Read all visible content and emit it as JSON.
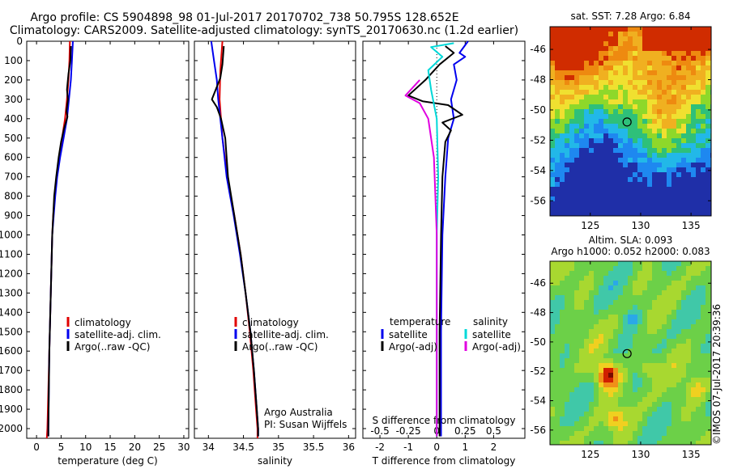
{
  "header": {
    "line1": "Argo profile: CS 5904898_98 01-Jul-2017 20170702_738 50.795S 128.652E",
    "line2": "Climatology: CARS2009. Satellite-adjusted climatology: synTS_20170630.nc (1.2d earlier)"
  },
  "credit": "©IMOS 07-Jul-2017 20:39:36",
  "chart_data": [
    {
      "type": "line",
      "panel": "temperature",
      "xlabel": "temperature (deg C)",
      "xlim": [
        -2,
        31
      ],
      "xticks": [
        "0",
        "5",
        "10",
        "15",
        "20",
        "25",
        "30"
      ],
      "xtick_values": [
        0,
        5,
        10,
        15,
        20,
        25,
        30
      ],
      "ylim": [
        0,
        2050
      ],
      "yticks": [
        "0",
        "100",
        "200",
        "300",
        "400",
        "500",
        "600",
        "700",
        "800",
        "900",
        "1000",
        "1100",
        "1200",
        "1300",
        "1400",
        "1500",
        "1600",
        "1700",
        "1800",
        "1900",
        "2000"
      ],
      "ytick_values": [
        0,
        100,
        200,
        300,
        400,
        500,
        600,
        700,
        800,
        900,
        1000,
        1100,
        1200,
        1300,
        1400,
        1500,
        1600,
        1700,
        1800,
        1900,
        2000
      ],
      "legend": [
        "climatology",
        "satellite-adj. clim.",
        "Argo(..raw -QC)"
      ],
      "legend_placement": "middle-right",
      "series": [
        {
          "name": "climatology",
          "color": "#e00000",
          "points": [
            [
              6.8,
              0
            ],
            [
              6.7,
              100
            ],
            [
              6.5,
              200
            ],
            [
              6.2,
              300
            ],
            [
              5.8,
              400
            ],
            [
              5.2,
              500
            ],
            [
              4.6,
              600
            ],
            [
              4.1,
              700
            ],
            [
              3.7,
              800
            ],
            [
              3.4,
              900
            ],
            [
              3.2,
              1000
            ],
            [
              3.0,
              1200
            ],
            [
              2.8,
              1400
            ],
            [
              2.6,
              1600
            ],
            [
              2.4,
              1800
            ],
            [
              2.2,
              2000
            ],
            [
              2.1,
              2050
            ]
          ]
        },
        {
          "name": "satellite-adj. clim.",
          "color": "#0000ee",
          "points": [
            [
              7.4,
              0
            ],
            [
              7.2,
              100
            ],
            [
              7.0,
              200
            ],
            [
              6.6,
              300
            ],
            [
              6.2,
              400
            ],
            [
              5.5,
              500
            ],
            [
              4.8,
              600
            ],
            [
              4.2,
              700
            ],
            [
              3.8,
              800
            ],
            [
              3.5,
              900
            ],
            [
              3.2,
              1000
            ],
            [
              3.0,
              1200
            ],
            [
              2.8,
              1400
            ],
            [
              2.6,
              1600
            ],
            [
              2.5,
              1800
            ],
            [
              2.4,
              2000
            ],
            [
              2.4,
              2040
            ]
          ]
        },
        {
          "name": "Argo(..raw -QC)",
          "color": "#000000",
          "points": [
            [
              7.0,
              25
            ],
            [
              6.9,
              100
            ],
            [
              6.5,
              170
            ],
            [
              6.2,
              250
            ],
            [
              6.4,
              300
            ],
            [
              6.1,
              360
            ],
            [
              6.3,
              390
            ],
            [
              5.6,
              450
            ],
            [
              5.0,
              520
            ],
            [
              4.5,
              600
            ],
            [
              4.0,
              700
            ],
            [
              3.6,
              800
            ],
            [
              3.4,
              900
            ],
            [
              3.2,
              1000
            ],
            [
              3.0,
              1200
            ],
            [
              2.8,
              1400
            ],
            [
              2.6,
              1600
            ],
            [
              2.5,
              1800
            ],
            [
              2.4,
              2000
            ],
            [
              2.4,
              2040
            ]
          ]
        }
      ]
    },
    {
      "type": "line",
      "panel": "salinity",
      "xlabel": "salinity",
      "xlim": [
        33.8,
        36.1
      ],
      "xticks": [
        "34",
        "34.5",
        "35",
        "35.5",
        "36"
      ],
      "xtick_values": [
        34,
        34.5,
        35,
        35.5,
        36
      ],
      "ylim": [
        0,
        2050
      ],
      "legend": [
        "climatology",
        "satellite-adj. clim.",
        "Argo(..raw -QC)"
      ],
      "legend_placement": "middle-right",
      "annotation": [
        "Argo Australia",
        "PI: Susan Wijffels"
      ],
      "series": [
        {
          "name": "climatology",
          "color": "#e00000",
          "points": [
            [
              34.2,
              0
            ],
            [
              34.17,
              150
            ],
            [
              34.16,
              300
            ],
            [
              34.2,
              500
            ],
            [
              34.27,
              700
            ],
            [
              34.37,
              900
            ],
            [
              34.46,
              1100
            ],
            [
              34.53,
              1300
            ],
            [
              34.59,
              1500
            ],
            [
              34.64,
              1700
            ],
            [
              34.68,
              1900
            ],
            [
              34.7,
              2000
            ],
            [
              34.7,
              2050
            ]
          ]
        },
        {
          "name": "satellite-adj. clim.",
          "color": "#0000ee",
          "points": [
            [
              34.04,
              0
            ],
            [
              34.08,
              100
            ],
            [
              34.12,
              200
            ],
            [
              34.14,
              300
            ],
            [
              34.17,
              400
            ],
            [
              34.2,
              500
            ],
            [
              34.26,
              700
            ],
            [
              34.36,
              900
            ],
            [
              34.45,
              1100
            ],
            [
              34.53,
              1300
            ],
            [
              34.6,
              1500
            ],
            [
              34.65,
              1700
            ],
            [
              34.69,
              1900
            ],
            [
              34.71,
              2000
            ],
            [
              34.71,
              2040
            ]
          ]
        },
        {
          "name": "Argo(..raw -QC)",
          "color": "#000000",
          "points": [
            [
              34.22,
              25
            ],
            [
              34.2,
              120
            ],
            [
              34.17,
              190
            ],
            [
              34.05,
              300
            ],
            [
              34.12,
              340
            ],
            [
              34.18,
              400
            ],
            [
              34.24,
              500
            ],
            [
              34.28,
              700
            ],
            [
              34.37,
              900
            ],
            [
              34.46,
              1100
            ],
            [
              34.53,
              1300
            ],
            [
              34.6,
              1500
            ],
            [
              34.65,
              1700
            ],
            [
              34.69,
              1900
            ],
            [
              34.71,
              2000
            ],
            [
              34.71,
              2040
            ]
          ]
        }
      ]
    },
    {
      "type": "line",
      "panel": "difference",
      "xlabel": "T difference from climatology",
      "xlabel2": "S difference from climatology",
      "xlim": [
        -2.6,
        3.1
      ],
      "xticks": [
        "-2",
        "-1",
        "0",
        "1",
        "2"
      ],
      "xtick_values": [
        -2,
        -1,
        0,
        1,
        2
      ],
      "xticks2": [
        "-0.5",
        "-0.25",
        "0",
        "0.25",
        "0.5"
      ],
      "xtick2_values": [
        -2,
        -1,
        0,
        1,
        2
      ],
      "ylim": [
        0,
        2050
      ],
      "legend_headers": [
        "temperature",
        "salinity"
      ],
      "legend": [
        "satellite",
        "Argo(-adj)",
        "satellite",
        "Argo(-adj)"
      ],
      "legend_placement": "middle",
      "series": [
        {
          "name": "temperature satellite",
          "color": "#0000ee",
          "points": [
            [
              1.1,
              0
            ],
            [
              0.8,
              60
            ],
            [
              1.0,
              80
            ],
            [
              0.6,
              120
            ],
            [
              0.7,
              200
            ],
            [
              0.5,
              300
            ],
            [
              0.6,
              400
            ],
            [
              0.4,
              500
            ],
            [
              0.3,
              700
            ],
            [
              0.2,
              1000
            ],
            [
              0.15,
              1500
            ],
            [
              0.15,
              2000
            ],
            [
              0.15,
              2040
            ]
          ]
        },
        {
          "name": "temperature Argo(-adj)",
          "color": "#000000",
          "points": [
            [
              0.3,
              25
            ],
            [
              0.6,
              60
            ],
            [
              0.1,
              120
            ],
            [
              -0.4,
              200
            ],
            [
              -1.0,
              280
            ],
            [
              -0.5,
              310
            ],
            [
              0.4,
              330
            ],
            [
              0.9,
              380
            ],
            [
              0.2,
              420
            ],
            [
              0.5,
              460
            ],
            [
              0.3,
              520
            ],
            [
              0.2,
              700
            ],
            [
              0.15,
              1000
            ],
            [
              0.1,
              1500
            ],
            [
              0.1,
              2000
            ],
            [
              0.1,
              2040
            ]
          ]
        },
        {
          "name": "salinity satellite",
          "color": "#00d8d8",
          "points": [
            [
              0.6,
              10
            ],
            [
              -0.2,
              30
            ],
            [
              0.2,
              80
            ],
            [
              -0.3,
              150
            ],
            [
              -0.2,
              250
            ],
            [
              0.0,
              400
            ],
            [
              0.05,
              700
            ],
            [
              0.0,
              1000
            ],
            [
              0.0,
              1500
            ],
            [
              0.0,
              2000
            ],
            [
              0.0,
              2040
            ]
          ]
        },
        {
          "name": "salinity Argo(-adj)",
          "color": "#e000e0",
          "points": [
            [
              -0.6,
              200
            ],
            [
              -1.1,
              280
            ],
            [
              -0.6,
              320
            ],
            [
              -0.3,
              400
            ],
            [
              -0.1,
              600
            ],
            [
              -0.05,
              800
            ],
            [
              0.0,
              1000
            ],
            [
              0.0,
              1500
            ],
            [
              0.0,
              2000
            ],
            [
              0.0,
              2040
            ]
          ]
        }
      ]
    },
    {
      "type": "heatmap",
      "panel": "sst-map",
      "title": "sat. SST: 7.28 Argo: 6.84",
      "xlim": [
        121,
        137
      ],
      "ylim": [
        -57,
        -44.5
      ],
      "xticks": [
        "125",
        "130",
        "135"
      ],
      "xtick_values": [
        125,
        130,
        135
      ],
      "yticks": [
        "-46",
        "-48",
        "-50",
        "-52",
        "-54",
        "-56"
      ],
      "ytick_values": [
        -46,
        -48,
        -50,
        -52,
        -54,
        -56
      ],
      "marker": {
        "lon": 128.652,
        "lat": -50.795
      },
      "colors": [
        "#1f2fa8",
        "#1e88f0",
        "#22b8e8",
        "#2ec07a",
        "#8ed82a",
        "#f0e030",
        "#f0b020",
        "#ee8a10",
        "#d02c00"
      ]
    },
    {
      "type": "heatmap",
      "panel": "sla-map",
      "title": "Altim. SLA: 0.093",
      "title2": "Argo h1000: 0.052 h2000: 0.083",
      "xlim": [
        121,
        137
      ],
      "ylim": [
        -57,
        -44.5
      ],
      "xticks": [
        "125",
        "130",
        "135"
      ],
      "xtick_values": [
        125,
        130,
        135
      ],
      "yticks": [
        "-46",
        "-48",
        "-50",
        "-52",
        "-54",
        "-56"
      ],
      "ytick_values": [
        -46,
        -48,
        -50,
        -52,
        -54,
        -56
      ],
      "marker": {
        "lon": 128.652,
        "lat": -50.795
      },
      "colors": [
        "#2aa8e8",
        "#40c8a8",
        "#6cd048",
        "#a8d830",
        "#f0d020",
        "#f09018",
        "#d02000",
        "#7a0a00"
      ]
    }
  ]
}
